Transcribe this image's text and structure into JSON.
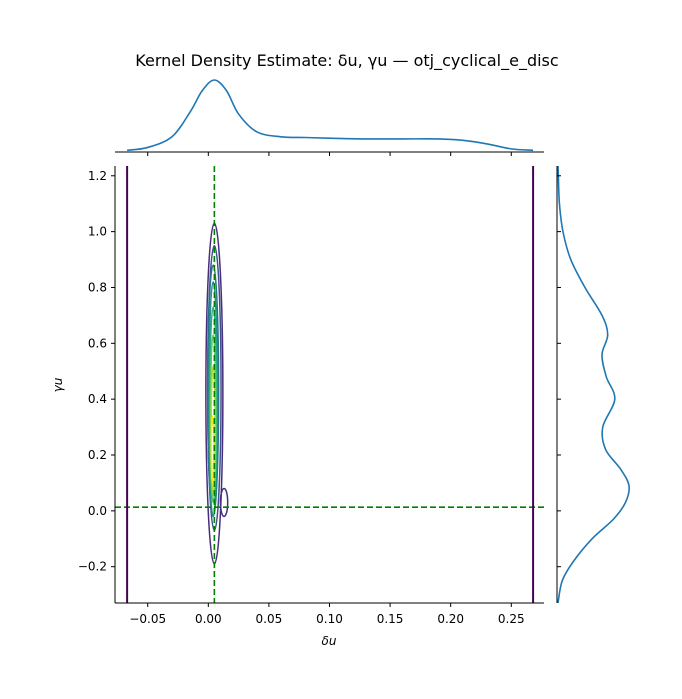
{
  "chart_data": {
    "type": "kde_joint",
    "title": "Kernel Density Estimate: δu, γu — otj_cyclical_e_disc",
    "xlabel": "δu",
    "ylabel": "γu",
    "xlim": [
      -0.077,
      0.277
    ],
    "ylim": [
      -0.33,
      1.235
    ],
    "xticks": [
      -0.05,
      0.0,
      0.05,
      0.1,
      0.15,
      0.2,
      0.25
    ],
    "xtick_labels": [
      "−0.05",
      "0.00",
      "0.05",
      "0.10",
      "0.15",
      "0.20",
      "0.25"
    ],
    "yticks": [
      -0.2,
      0.0,
      0.2,
      0.4,
      0.6,
      0.8,
      1.0,
      1.2
    ],
    "ytick_labels": [
      "−0.2",
      "0.0",
      "0.2",
      "0.4",
      "0.6",
      "0.8",
      "1.0",
      "1.2"
    ],
    "reference_lines": {
      "vertical_dashed_x": 0.005,
      "horizontal_dashed_y": 0.013,
      "dashed_color": "#008000",
      "vertical_solid_x": [
        -0.067,
        0.268
      ],
      "solid_color": "#440154"
    },
    "contour_levels": [
      {
        "level": 1,
        "color": "#472d7b",
        "cx": 0.005,
        "cy": 0.42,
        "rx": 0.007,
        "ry_top": 0.61,
        "ry_bottom": 0.61
      },
      {
        "level": 2,
        "color": "#3b528b",
        "cx": 0.005,
        "cy": 0.43,
        "rx": 0.0055,
        "ry_top": 0.52,
        "ry_bottom": 0.5
      },
      {
        "level": 3,
        "color": "#2c728e",
        "cx": 0.004,
        "cy": 0.43,
        "rx": 0.0045,
        "ry_top": 0.45,
        "ry_bottom": 0.45
      },
      {
        "level": 4,
        "color": "#21918c",
        "cx": 0.004,
        "cy": 0.4,
        "rx": 0.0035,
        "ry_top": 0.42,
        "ry_bottom": 0.42
      },
      {
        "level": 5,
        "color": "#28ae80",
        "cx": 0.004,
        "cy": 0.38,
        "rx": 0.0028,
        "ry_top": 0.35,
        "ry_bottom": 0.35
      },
      {
        "level": 6,
        "color": "#5ec962",
        "cx": 0.004,
        "cy": 0.33,
        "rx": 0.0022,
        "ry_top": 0.3,
        "ry_bottom": 0.3
      },
      {
        "level": 7,
        "color": "#addc30",
        "cx": 0.004,
        "cy": 0.28,
        "rx": 0.0016,
        "ry_top": 0.24,
        "ry_bottom": 0.22
      },
      {
        "level": 8,
        "color": "#fde725",
        "cx": 0.0035,
        "cy": 0.2,
        "rx": 0.001,
        "ry_top": 0.14,
        "ry_bottom": 0.1
      }
    ],
    "marginal_x": {
      "color": "#1f77b4",
      "x": [
        -0.067,
        -0.05,
        -0.03,
        -0.015,
        -0.005,
        0.005,
        0.015,
        0.025,
        0.04,
        0.06,
        0.08,
        0.1,
        0.13,
        0.16,
        0.19,
        0.21,
        0.23,
        0.25,
        0.268
      ],
      "density": [
        0.01,
        0.05,
        0.2,
        0.55,
        0.85,
        1.0,
        0.85,
        0.52,
        0.27,
        0.2,
        0.19,
        0.18,
        0.17,
        0.17,
        0.17,
        0.15,
        0.1,
        0.03,
        0.01
      ]
    },
    "marginal_y": {
      "color": "#1f77b4",
      "y": [
        -0.33,
        -0.25,
        -0.18,
        -0.1,
        -0.03,
        0.03,
        0.09,
        0.15,
        0.22,
        0.3,
        0.4,
        0.48,
        0.56,
        0.63,
        0.7,
        0.8,
        0.9,
        1.0,
        1.1,
        1.2,
        1.235
      ],
      "density": [
        0.0,
        0.06,
        0.22,
        0.48,
        0.78,
        0.95,
        1.0,
        0.88,
        0.67,
        0.63,
        0.8,
        0.68,
        0.62,
        0.7,
        0.62,
        0.38,
        0.18,
        0.07,
        0.02,
        0.005,
        0.0
      ]
    }
  }
}
